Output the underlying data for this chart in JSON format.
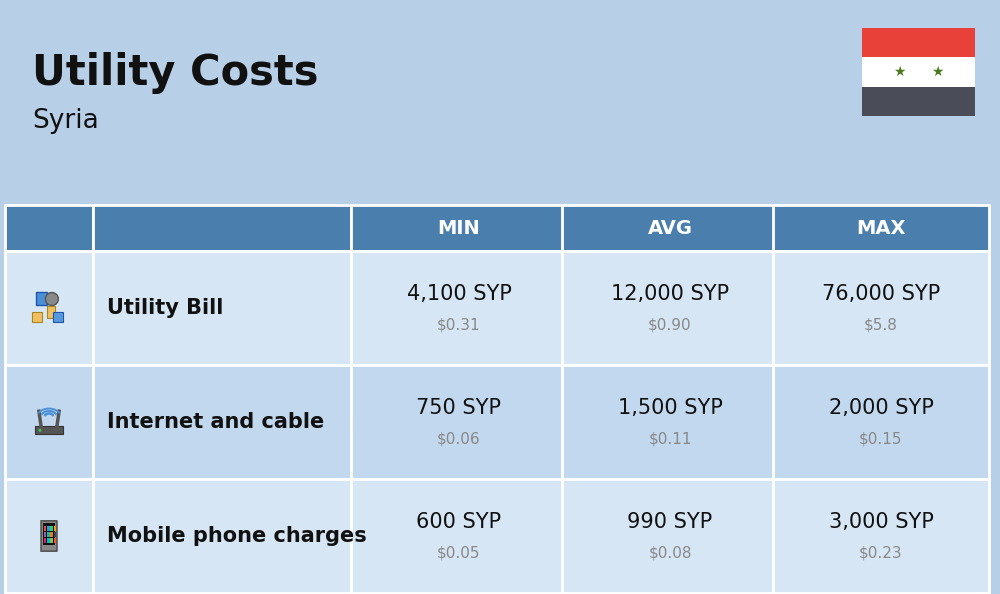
{
  "title": "Utility Costs",
  "subtitle": "Syria",
  "background_color": "#b8cfe8",
  "header_bg_color": "#4a7fad",
  "header_text_color": "#ffffff",
  "row_bg_color_1": "#d6e6f5",
  "row_bg_color_2": "#c2d8ee",
  "table_border_color": "#ffffff",
  "col_headers": [
    "MIN",
    "AVG",
    "MAX"
  ],
  "rows": [
    {
      "label": "Utility Bill",
      "min_syp": "4,100 SYP",
      "min_usd": "$0.31",
      "avg_syp": "12,000 SYP",
      "avg_usd": "$0.90",
      "max_syp": "76,000 SYP",
      "max_usd": "$5.8"
    },
    {
      "label": "Internet and cable",
      "min_syp": "750 SYP",
      "min_usd": "$0.06",
      "avg_syp": "1,500 SYP",
      "avg_usd": "$0.11",
      "max_syp": "2,000 SYP",
      "max_usd": "$0.15"
    },
    {
      "label": "Mobile phone charges",
      "min_syp": "600 SYP",
      "min_usd": "$0.05",
      "avg_syp": "990 SYP",
      "avg_usd": "$0.08",
      "max_syp": "3,000 SYP",
      "max_usd": "$0.23"
    }
  ],
  "flag_red": "#e8413a",
  "flag_white": "#ffffff",
  "flag_black": "#4a4d57",
  "flag_star": "#4a7a1e",
  "syp_fontsize": 15,
  "usd_fontsize": 11,
  "label_fontsize": 15,
  "header_fontsize": 14,
  "title_fontsize": 30,
  "subtitle_fontsize": 19
}
